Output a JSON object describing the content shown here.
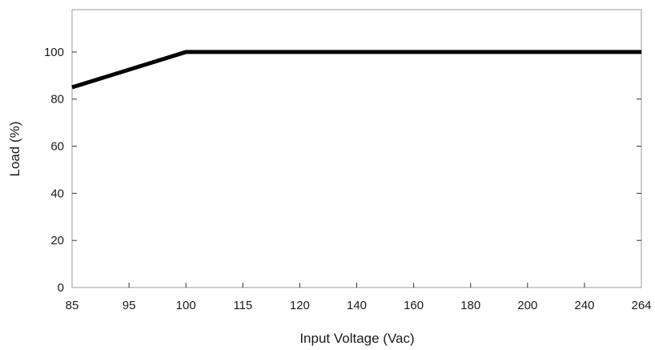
{
  "chart_data": {
    "type": "line",
    "title": "",
    "xlabel": "Input Voltage (Vac)",
    "ylabel": "Load (%)",
    "x_ticks": [
      "85",
      "95",
      "100",
      "115",
      "120",
      "140",
      "160",
      "180",
      "200",
      "240",
      "264"
    ],
    "y_ticks": [
      "0",
      "20",
      "40",
      "60",
      "80",
      "100"
    ],
    "ylim": [
      0,
      118
    ],
    "grid": false,
    "legend": "none",
    "line_color": "#000000",
    "series": [
      {
        "x": [
          "85",
          "100",
          "264"
        ],
        "y": [
          85,
          100,
          100
        ]
      }
    ]
  }
}
